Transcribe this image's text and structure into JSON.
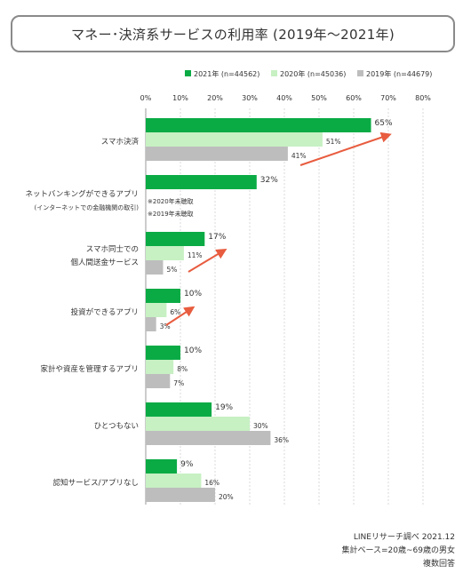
{
  "title": "マネー･決済系サービスの利用率 (2019年〜2021年)",
  "footer": {
    "line1": "LINEリサーチ調べ 2021.12",
    "line2": "集計ベース=20歳~69歳の男女",
    "line3": "複数回答"
  },
  "colors": {
    "series2021": "#0aab45",
    "series2020": "#c7f0c3",
    "series2019": "#bdbdbd",
    "arrow": "#e85c3f",
    "grid": "#d9d9d9"
  },
  "chart_data": {
    "type": "bar",
    "orientation": "horizontal",
    "legend_position": "top",
    "grid": true,
    "xlim": [
      0,
      80
    ],
    "ticks": [
      "0%",
      "10%",
      "20%",
      "30%",
      "40%",
      "50%",
      "60%",
      "70%",
      "80%"
    ],
    "categories": [
      {
        "lines": [
          "スマホ決済"
        ]
      },
      {
        "lines": [
          "ネットバンキングができるアプリ",
          "(インターネットでの金融機関の取引)"
        ]
      },
      {
        "lines": [
          "スマホ同士での",
          "個人間送金サービス"
        ]
      },
      {
        "lines": [
          "投資ができるアプリ"
        ]
      },
      {
        "lines": [
          "家計や資産を管理するアプリ"
        ]
      },
      {
        "lines": [
          "ひとつもない"
        ]
      },
      {
        "lines": [
          "認知サービス/アプリなし"
        ]
      }
    ],
    "series": [
      {
        "name": "2021年 (n=44562)",
        "values": [
          65,
          32,
          17,
          10,
          10,
          19,
          9
        ]
      },
      {
        "name": "2020年 (n=45036)",
        "values": [
          51,
          null,
          11,
          6,
          8,
          30,
          16
        ]
      },
      {
        "name": "2019年 (n=44679)",
        "values": [
          41,
          null,
          5,
          3,
          7,
          36,
          20
        ]
      }
    ],
    "annotations": [
      "※2020年未聴取",
      "※2019年未聴取"
    ],
    "trend_arrows": [
      0,
      2,
      3
    ]
  }
}
